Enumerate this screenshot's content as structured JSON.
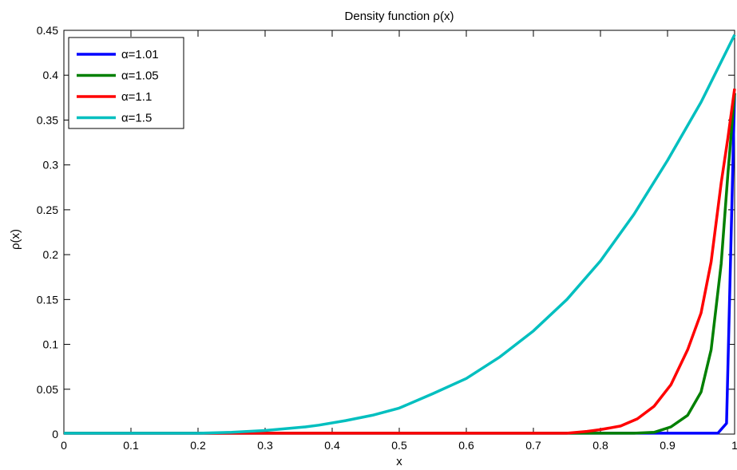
{
  "chart_data": {
    "type": "line",
    "title": "Density function ρ(x)",
    "xlabel": "x",
    "ylabel": "ρ(x)",
    "xlim": [
      0,
      1
    ],
    "ylim": [
      0,
      0.45
    ],
    "xticks": [
      "0",
      "0.1",
      "0.2",
      "0.3",
      "0.4",
      "0.5",
      "0.6",
      "0.7",
      "0.8",
      "0.9",
      "1"
    ],
    "yticks": [
      "0",
      "0.05",
      "0.1",
      "0.15",
      "0.2",
      "0.25",
      "0.3",
      "0.35",
      "0.4",
      "0.45"
    ],
    "grid": false,
    "legend_position": "top-left",
    "series": [
      {
        "name": "α=1.01",
        "color": "#0000ff",
        "x": [
          0,
          0.1,
          0.2,
          0.3,
          0.4,
          0.5,
          0.6,
          0.7,
          0.8,
          0.9,
          0.96,
          0.975,
          0.988,
          1.0
        ],
        "y": [
          0.001,
          0.001,
          0.001,
          0.001,
          0.001,
          0.001,
          0.001,
          0.001,
          0.001,
          0.001,
          0.001,
          0.001,
          0.012,
          0.38
        ]
      },
      {
        "name": "α=1.05",
        "color": "#008000",
        "x": [
          0,
          0.1,
          0.2,
          0.3,
          0.4,
          0.5,
          0.6,
          0.7,
          0.8,
          0.85,
          0.88,
          0.905,
          0.93,
          0.95,
          0.965,
          0.98,
          0.99,
          1.0
        ],
        "y": [
          0.001,
          0.001,
          0.001,
          0.001,
          0.001,
          0.001,
          0.001,
          0.001,
          0.001,
          0.001,
          0.002,
          0.008,
          0.021,
          0.047,
          0.094,
          0.19,
          0.29,
          0.38
        ]
      },
      {
        "name": "α=1.1",
        "color": "#ff0000",
        "x": [
          0,
          0.1,
          0.2,
          0.3,
          0.4,
          0.5,
          0.6,
          0.7,
          0.75,
          0.78,
          0.8,
          0.83,
          0.855,
          0.88,
          0.905,
          0.93,
          0.95,
          0.965,
          0.98,
          0.99,
          1.0
        ],
        "y": [
          0.001,
          0.001,
          0.001,
          0.001,
          0.001,
          0.001,
          0.001,
          0.001,
          0.001,
          0.003,
          0.005,
          0.009,
          0.017,
          0.031,
          0.055,
          0.094,
          0.135,
          0.192,
          0.28,
          0.33,
          0.385
        ]
      },
      {
        "name": "α=1.5",
        "color": "#00bfbf",
        "x": [
          0,
          0.1,
          0.15,
          0.2,
          0.25,
          0.3,
          0.33,
          0.36,
          0.38,
          0.42,
          0.46,
          0.5,
          0.55,
          0.6,
          0.65,
          0.7,
          0.75,
          0.8,
          0.85,
          0.9,
          0.95,
          1.0
        ],
        "y": [
          0.001,
          0.001,
          0.001,
          0.001,
          0.002,
          0.004,
          0.006,
          0.008,
          0.01,
          0.015,
          0.021,
          0.029,
          0.045,
          0.062,
          0.086,
          0.115,
          0.15,
          0.193,
          0.245,
          0.305,
          0.37,
          0.445
        ]
      }
    ]
  }
}
